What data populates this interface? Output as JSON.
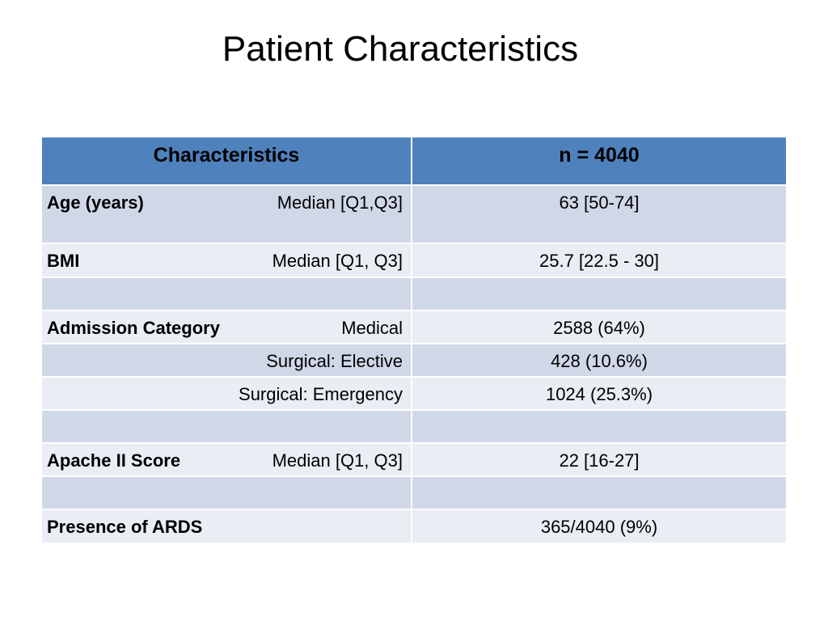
{
  "title": "Patient Characteristics",
  "table": {
    "header": {
      "col1": "Characteristics",
      "col2": "n = 4040"
    },
    "rows": [
      {
        "label": "Age (years)",
        "sub": "Median [Q1,Q3]",
        "value": "63 [50-74]"
      },
      {
        "label": "BMI",
        "sub": "Median [Q1, Q3]",
        "value": "25.7 [22.5 - 30]"
      },
      {
        "label": "",
        "sub": "",
        "value": ""
      },
      {
        "label": "Admission Category",
        "sub": "Medical",
        "value": "2588 (64%)"
      },
      {
        "label": "",
        "sub": "Surgical: Elective",
        "value": "428 (10.6%)"
      },
      {
        "label": "",
        "sub": "Surgical: Emergency",
        "value": "1024 (25.3%)"
      },
      {
        "label": "",
        "sub": "",
        "value": ""
      },
      {
        "label": "Apache II Score",
        "sub": "Median [Q1, Q3]",
        "value": "22 [16-27]"
      },
      {
        "label": "",
        "sub": "",
        "value": ""
      },
      {
        "label": "Presence of ARDS",
        "sub": "",
        "value": "365/4040 (9%)"
      }
    ]
  },
  "colors": {
    "header_bg": "#4f81bd",
    "row_dark": "#d0d8e8",
    "row_light": "#e9edf4"
  }
}
